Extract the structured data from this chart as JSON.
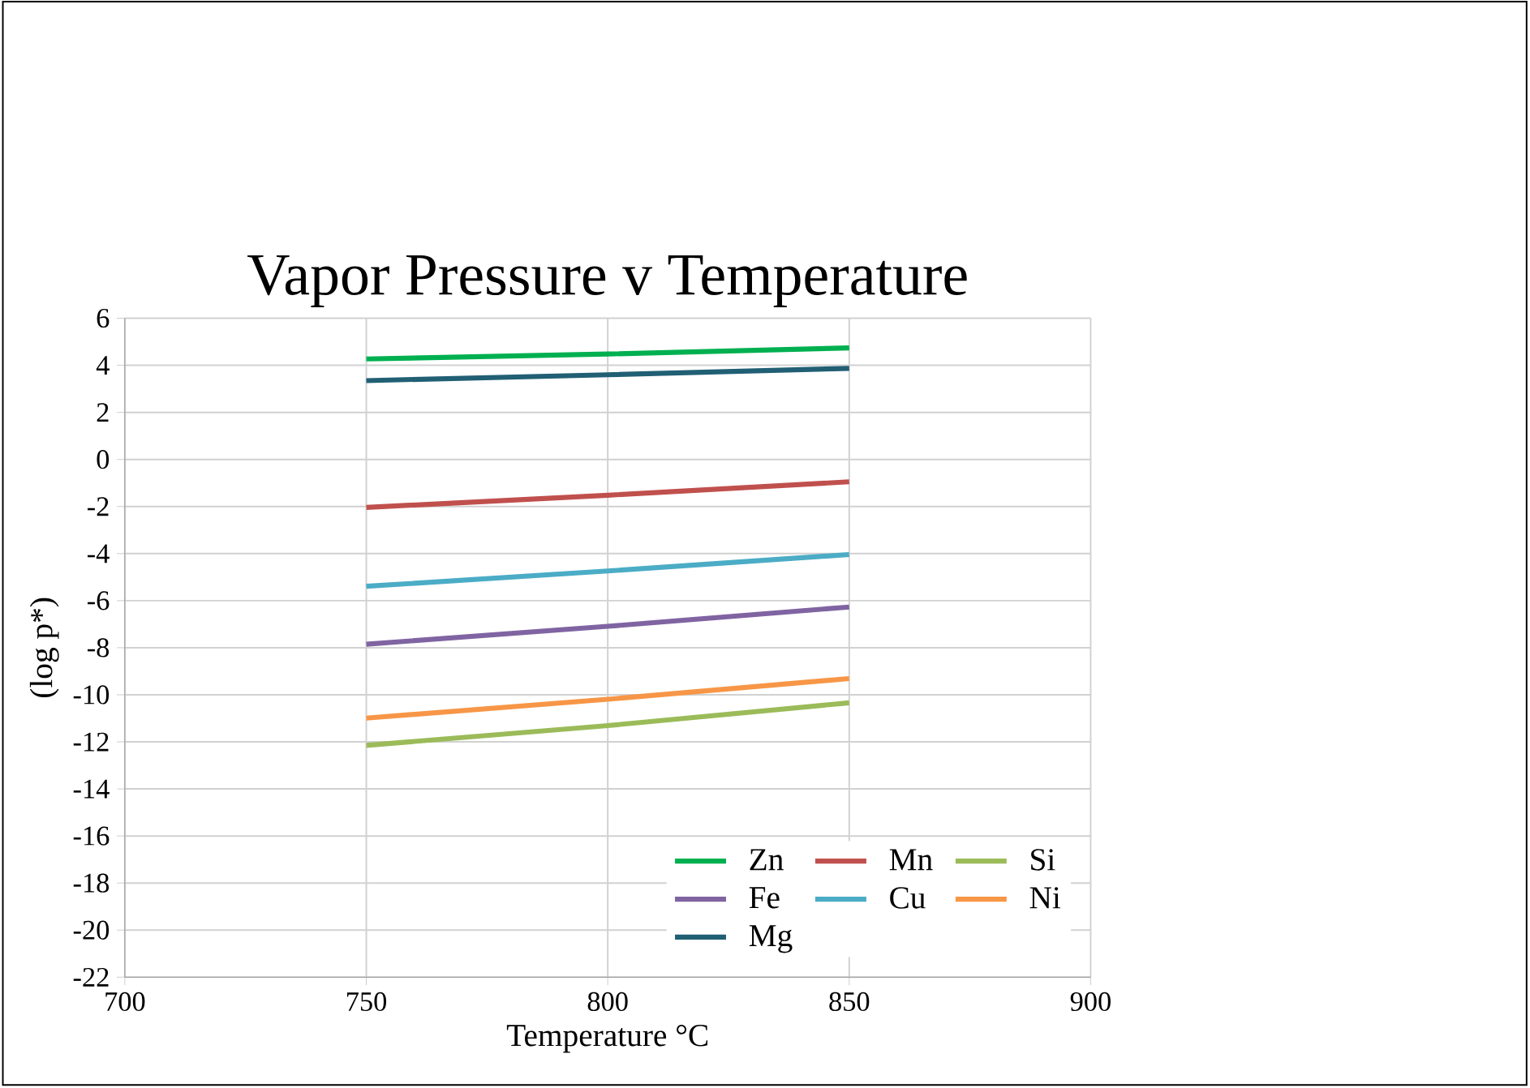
{
  "chart_data": {
    "type": "line",
    "title": "Vapor Pressure v Temperature",
    "xlabel": "Temperature °C",
    "ylabel": "(log p*)",
    "xlim": [
      700,
      900
    ],
    "xticks": [
      700,
      750,
      800,
      850,
      900
    ],
    "ylim": [
      -22,
      6
    ],
    "yticks": [
      -22,
      -20,
      -18,
      -16,
      -14,
      -12,
      -10,
      -8,
      -6,
      -4,
      -2,
      0,
      2,
      4,
      6
    ],
    "grid": true,
    "legend": "bottom right",
    "marker": "none",
    "line_style": "solid",
    "series": [
      {
        "name": "Zn",
        "color": "#00b050",
        "x": [
          750,
          800,
          850
        ],
        "values": [
          4.27,
          4.48,
          4.74
        ]
      },
      {
        "name": "Mn",
        "color": "#c0504d",
        "x": [
          750,
          800,
          850
        ],
        "values": [
          -2.04,
          -1.52,
          -0.95
        ]
      },
      {
        "name": "Si",
        "color": "#9bbb59",
        "x": [
          750,
          800,
          850
        ],
        "values": [
          -12.15,
          -11.31,
          -10.34
        ]
      },
      {
        "name": "Fe",
        "color": "#8064a2",
        "x": [
          750,
          800,
          850
        ],
        "values": [
          -7.85,
          -7.09,
          -6.27
        ]
      },
      {
        "name": "Cu",
        "color": "#4bacc6",
        "x": [
          750,
          800,
          850
        ],
        "values": [
          -5.39,
          -4.74,
          -4.04
        ]
      },
      {
        "name": "Ni",
        "color": "#f79646",
        "x": [
          750,
          800,
          850
        ],
        "values": [
          -10.99,
          -10.19,
          -9.31
        ]
      },
      {
        "name": "Mg",
        "color": "#215f74",
        "x": [
          750,
          800,
          850
        ],
        "values": [
          3.35,
          3.6,
          3.87
        ]
      }
    ]
  }
}
